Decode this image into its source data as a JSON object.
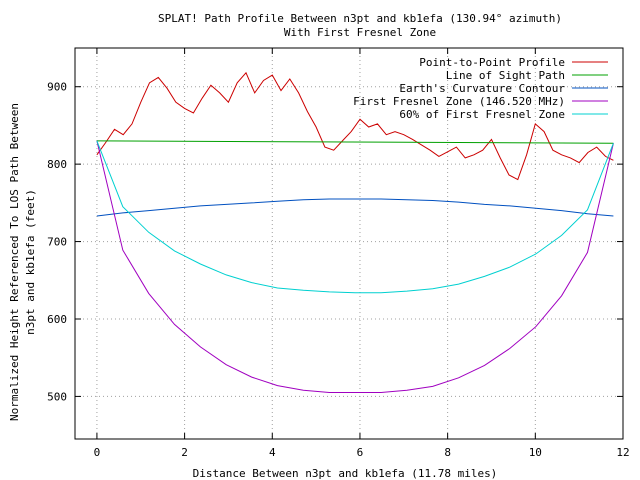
{
  "chart_data": {
    "type": "line",
    "title": "SPLAT! Path Profile Between n3pt and kb1efa (130.94° azimuth)",
    "subtitle": "With First Fresnel Zone",
    "xlabel": "Distance Between n3pt and kb1efa (11.78 miles)",
    "ylabel_line1": "Normalized Height Referenced To LOS Path Between",
    "ylabel_line2": "n3pt and kb1efa (feet)",
    "xlim": [
      -0.5,
      12
    ],
    "ylim": [
      445,
      950
    ],
    "xticks": [
      0,
      2,
      4,
      6,
      8,
      10,
      12
    ],
    "yticks": [
      500,
      600,
      700,
      800,
      900
    ],
    "grid": true,
    "legend_position": "top-right",
    "series": [
      {
        "name": "Point-to-Point Profile",
        "color": "#cc0000",
        "x": [
          0,
          0.2,
          0.4,
          0.6,
          0.8,
          1.0,
          1.2,
          1.4,
          1.6,
          1.8,
          2.0,
          2.2,
          2.4,
          2.6,
          2.8,
          3.0,
          3.2,
          3.4,
          3.6,
          3.8,
          4.0,
          4.2,
          4.4,
          4.6,
          4.8,
          5.0,
          5.2,
          5.4,
          5.6,
          5.8,
          6.0,
          6.2,
          6.4,
          6.6,
          6.8,
          7.0,
          7.2,
          7.4,
          7.6,
          7.8,
          8.0,
          8.2,
          8.4,
          8.6,
          8.8,
          9.0,
          9.2,
          9.4,
          9.6,
          9.8,
          10.0,
          10.2,
          10.4,
          10.6,
          10.8,
          11.0,
          11.2,
          11.4,
          11.6,
          11.78
        ],
        "y": [
          812,
          828,
          845,
          838,
          852,
          880,
          905,
          912,
          898,
          880,
          872,
          866,
          885,
          902,
          892,
          880,
          905,
          918,
          892,
          908,
          915,
          895,
          910,
          892,
          868,
          848,
          822,
          818,
          830,
          842,
          858,
          848,
          852,
          838,
          842,
          838,
          832,
          825,
          818,
          810,
          816,
          822,
          808,
          812,
          818,
          832,
          808,
          786,
          780,
          812,
          852,
          842,
          818,
          812,
          808,
          802,
          815,
          822,
          810,
          805
        ]
      },
      {
        "name": "Line of Sight Path",
        "color": "#00a000",
        "x": [
          0,
          11.78
        ],
        "y": [
          830,
          827
        ]
      },
      {
        "name": "Earth's Curvature Contour",
        "color": "#0050c0",
        "x": [
          0,
          0.59,
          1.18,
          1.77,
          2.36,
          2.95,
          3.53,
          4.12,
          4.71,
          5.3,
          5.89,
          6.48,
          7.07,
          7.66,
          8.25,
          8.84,
          9.42,
          10.01,
          10.6,
          11.19,
          11.78
        ],
        "y": [
          733,
          737,
          740,
          743,
          746,
          748,
          750,
          752,
          754,
          755,
          755,
          755,
          754,
          753,
          751,
          748,
          746,
          743,
          740,
          736,
          733
        ]
      },
      {
        "name": "First Fresnel Zone (146.520 MHz)",
        "color": "#a000c0",
        "x": [
          0,
          0.59,
          1.18,
          1.77,
          2.36,
          2.95,
          3.53,
          4.12,
          4.71,
          5.3,
          5.89,
          6.48,
          7.07,
          7.66,
          8.25,
          8.84,
          9.42,
          10.01,
          10.6,
          11.19,
          11.78
        ],
        "y": [
          830,
          689,
          633,
          593,
          564,
          541,
          525,
          514,
          508,
          505,
          505,
          505,
          508,
          513,
          524,
          540,
          562,
          590,
          630,
          686,
          827
        ]
      },
      {
        "name": "60% of First Fresnel Zone",
        "color": "#00d0d0",
        "x": [
          0,
          0.59,
          1.18,
          1.77,
          2.36,
          2.95,
          3.53,
          4.12,
          4.71,
          5.3,
          5.89,
          6.48,
          7.07,
          7.66,
          8.25,
          8.84,
          9.42,
          10.01,
          10.6,
          11.19,
          11.78
        ],
        "y": [
          830,
          745,
          712,
          688,
          671,
          657,
          647,
          640,
          637,
          635,
          634,
          634,
          636,
          639,
          645,
          655,
          667,
          684,
          708,
          741,
          827
        ]
      }
    ]
  }
}
